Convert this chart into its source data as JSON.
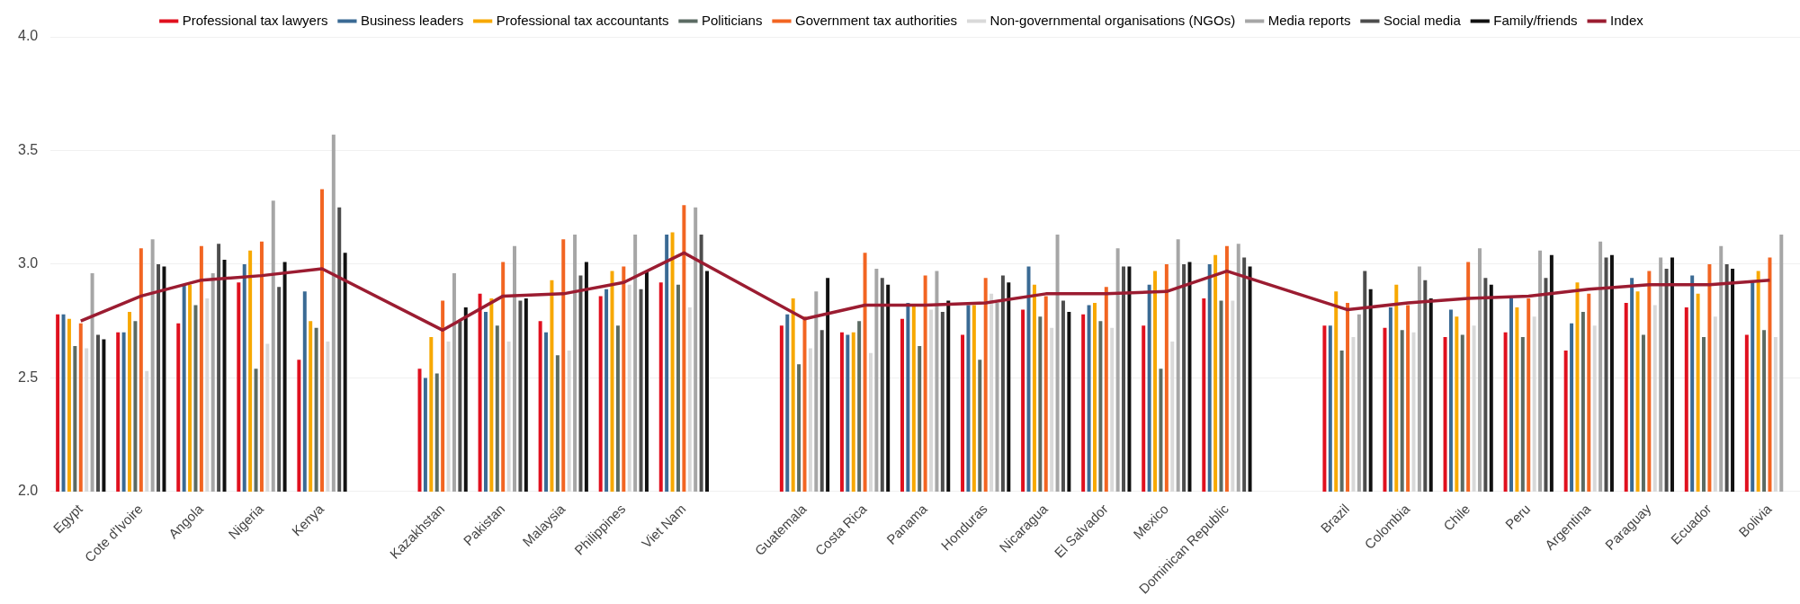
{
  "chart_data": {
    "type": "bar",
    "categories": [
      "Egypt",
      "Cote d'Ivoire",
      "Angola",
      "Nigeria",
      "Kenya",
      null,
      "Kazakhstan",
      "Pakistan",
      "Malaysia",
      "Philippines",
      "Viet Nam",
      null,
      "Guatemala",
      "Costa Rica",
      "Panama",
      "Honduras",
      "Nicaragua",
      "El Salvador",
      "Mexico",
      "Dominican Republic",
      null,
      "Brazil",
      "Colombia",
      "Chile",
      "Peru",
      "Argentina",
      "Paraguay",
      "Ecuador",
      "Bolivia"
    ],
    "series": [
      {
        "name": "Professional tax lawyers",
        "color": "#e0101e",
        "values": [
          2.78,
          2.7,
          2.74,
          2.92,
          2.58,
          null,
          2.54,
          2.87,
          2.75,
          2.86,
          2.92,
          null,
          2.73,
          2.7,
          2.76,
          2.69,
          2.8,
          2.78,
          2.73,
          2.85,
          null,
          2.73,
          2.72,
          2.68,
          2.7,
          2.62,
          2.83,
          2.81,
          2.69
        ]
      },
      {
        "name": "Business leaders",
        "color": "#3a6a94",
        "values": [
          2.78,
          2.7,
          2.91,
          3.0,
          2.88,
          null,
          2.5,
          2.79,
          2.7,
          2.89,
          3.13,
          null,
          2.78,
          2.69,
          2.83,
          2.82,
          2.99,
          2.82,
          2.91,
          3.0,
          null,
          2.73,
          2.81,
          2.8,
          2.85,
          2.74,
          2.94,
          2.95,
          2.92
        ]
      },
      {
        "name": "Professional tax accountants",
        "color": "#f7a800",
        "values": [
          2.76,
          2.79,
          2.91,
          3.06,
          2.75,
          null,
          2.68,
          2.85,
          2.93,
          2.97,
          3.14,
          null,
          2.85,
          2.7,
          2.82,
          2.82,
          2.91,
          2.83,
          2.97,
          3.04,
          null,
          2.88,
          2.91,
          2.77,
          2.81,
          2.92,
          2.88,
          2.87,
          2.97
        ]
      },
      {
        "name": "Politicians",
        "color": "#5b6b63",
        "values": [
          2.64,
          2.75,
          2.82,
          2.54,
          2.72,
          null,
          2.52,
          2.73,
          2.6,
          2.73,
          2.91,
          null,
          2.56,
          2.75,
          2.64,
          2.58,
          2.77,
          2.75,
          2.54,
          2.84,
          null,
          2.62,
          2.71,
          2.69,
          2.68,
          2.79,
          2.69,
          2.68,
          2.71
        ]
      },
      {
        "name": "Government tax authorities",
        "color": "#f26522",
        "values": [
          2.74,
          3.07,
          3.08,
          3.1,
          3.33,
          null,
          2.84,
          3.01,
          3.11,
          2.99,
          3.26,
          null,
          2.77,
          3.05,
          2.95,
          2.94,
          2.86,
          2.9,
          3.0,
          3.08,
          null,
          2.83,
          2.82,
          3.01,
          2.85,
          2.87,
          2.97,
          3.0,
          3.03
        ]
      },
      {
        "name": "Non-governmental organisations (NGOs)",
        "color": "#d9d9d9",
        "values": [
          2.63,
          2.53,
          2.85,
          2.65,
          2.66,
          null,
          2.66,
          2.66,
          2.62,
          2.91,
          2.81,
          null,
          2.63,
          2.61,
          2.8,
          2.87,
          2.72,
          2.72,
          2.66,
          2.84,
          null,
          2.68,
          2.7,
          2.73,
          2.77,
          2.73,
          2.82,
          2.77,
          2.68
        ]
      },
      {
        "name": "Media reports",
        "color": "#a6a6a6",
        "values": [
          2.96,
          3.11,
          2.96,
          3.28,
          3.57,
          null,
          2.96,
          3.08,
          3.13,
          3.13,
          3.25,
          null,
          2.88,
          2.98,
          2.97,
          2.83,
          3.13,
          3.07,
          3.11,
          3.09,
          null,
          2.78,
          2.99,
          3.07,
          3.06,
          3.1,
          3.03,
          3.08,
          3.13
        ]
      },
      {
        "name": "Social media",
        "color": "#4d4d4d",
        "values": [
          2.69,
          3.0,
          3.09,
          2.9,
          3.25,
          null,
          2.75,
          2.84,
          2.95,
          2.89,
          3.13,
          null,
          2.71,
          2.94,
          2.79,
          2.95,
          2.84,
          2.99,
          3.0,
          3.03,
          null,
          2.97,
          2.93,
          2.94,
          2.94,
          3.03,
          2.98,
          3.0,
          null
        ]
      },
      {
        "name": "Family/friends",
        "color": "#111111",
        "values": [
          2.67,
          2.99,
          3.02,
          3.01,
          3.05,
          null,
          2.81,
          2.85,
          3.01,
          2.97,
          2.97,
          null,
          2.94,
          2.91,
          2.84,
          2.92,
          2.79,
          2.99,
          3.01,
          2.99,
          null,
          2.89,
          2.85,
          2.91,
          3.04,
          3.04,
          3.03,
          2.98,
          null
        ]
      },
      {
        "name": "Index",
        "type": "line",
        "color": "#9b1c31",
        "values": [
          2.75,
          2.86,
          2.93,
          2.95,
          2.98,
          null,
          2.71,
          2.86,
          2.87,
          2.92,
          3.05,
          null,
          2.76,
          2.82,
          2.82,
          2.83,
          2.87,
          2.87,
          2.88,
          2.97,
          null,
          2.8,
          2.83,
          2.85,
          2.86,
          2.89,
          2.91,
          2.91,
          2.93
        ]
      }
    ],
    "ylim": [
      2,
      4
    ],
    "yticks": [
      {
        "value": 2,
        "label": "2.0"
      },
      {
        "value": 2.5,
        "label": "2.5"
      },
      {
        "value": 3,
        "label": "3.0"
      },
      {
        "value": 3.5,
        "label": "3.5"
      },
      {
        "value": 4,
        "label": "4.0"
      }
    ],
    "grid": "y",
    "legend": "top"
  }
}
